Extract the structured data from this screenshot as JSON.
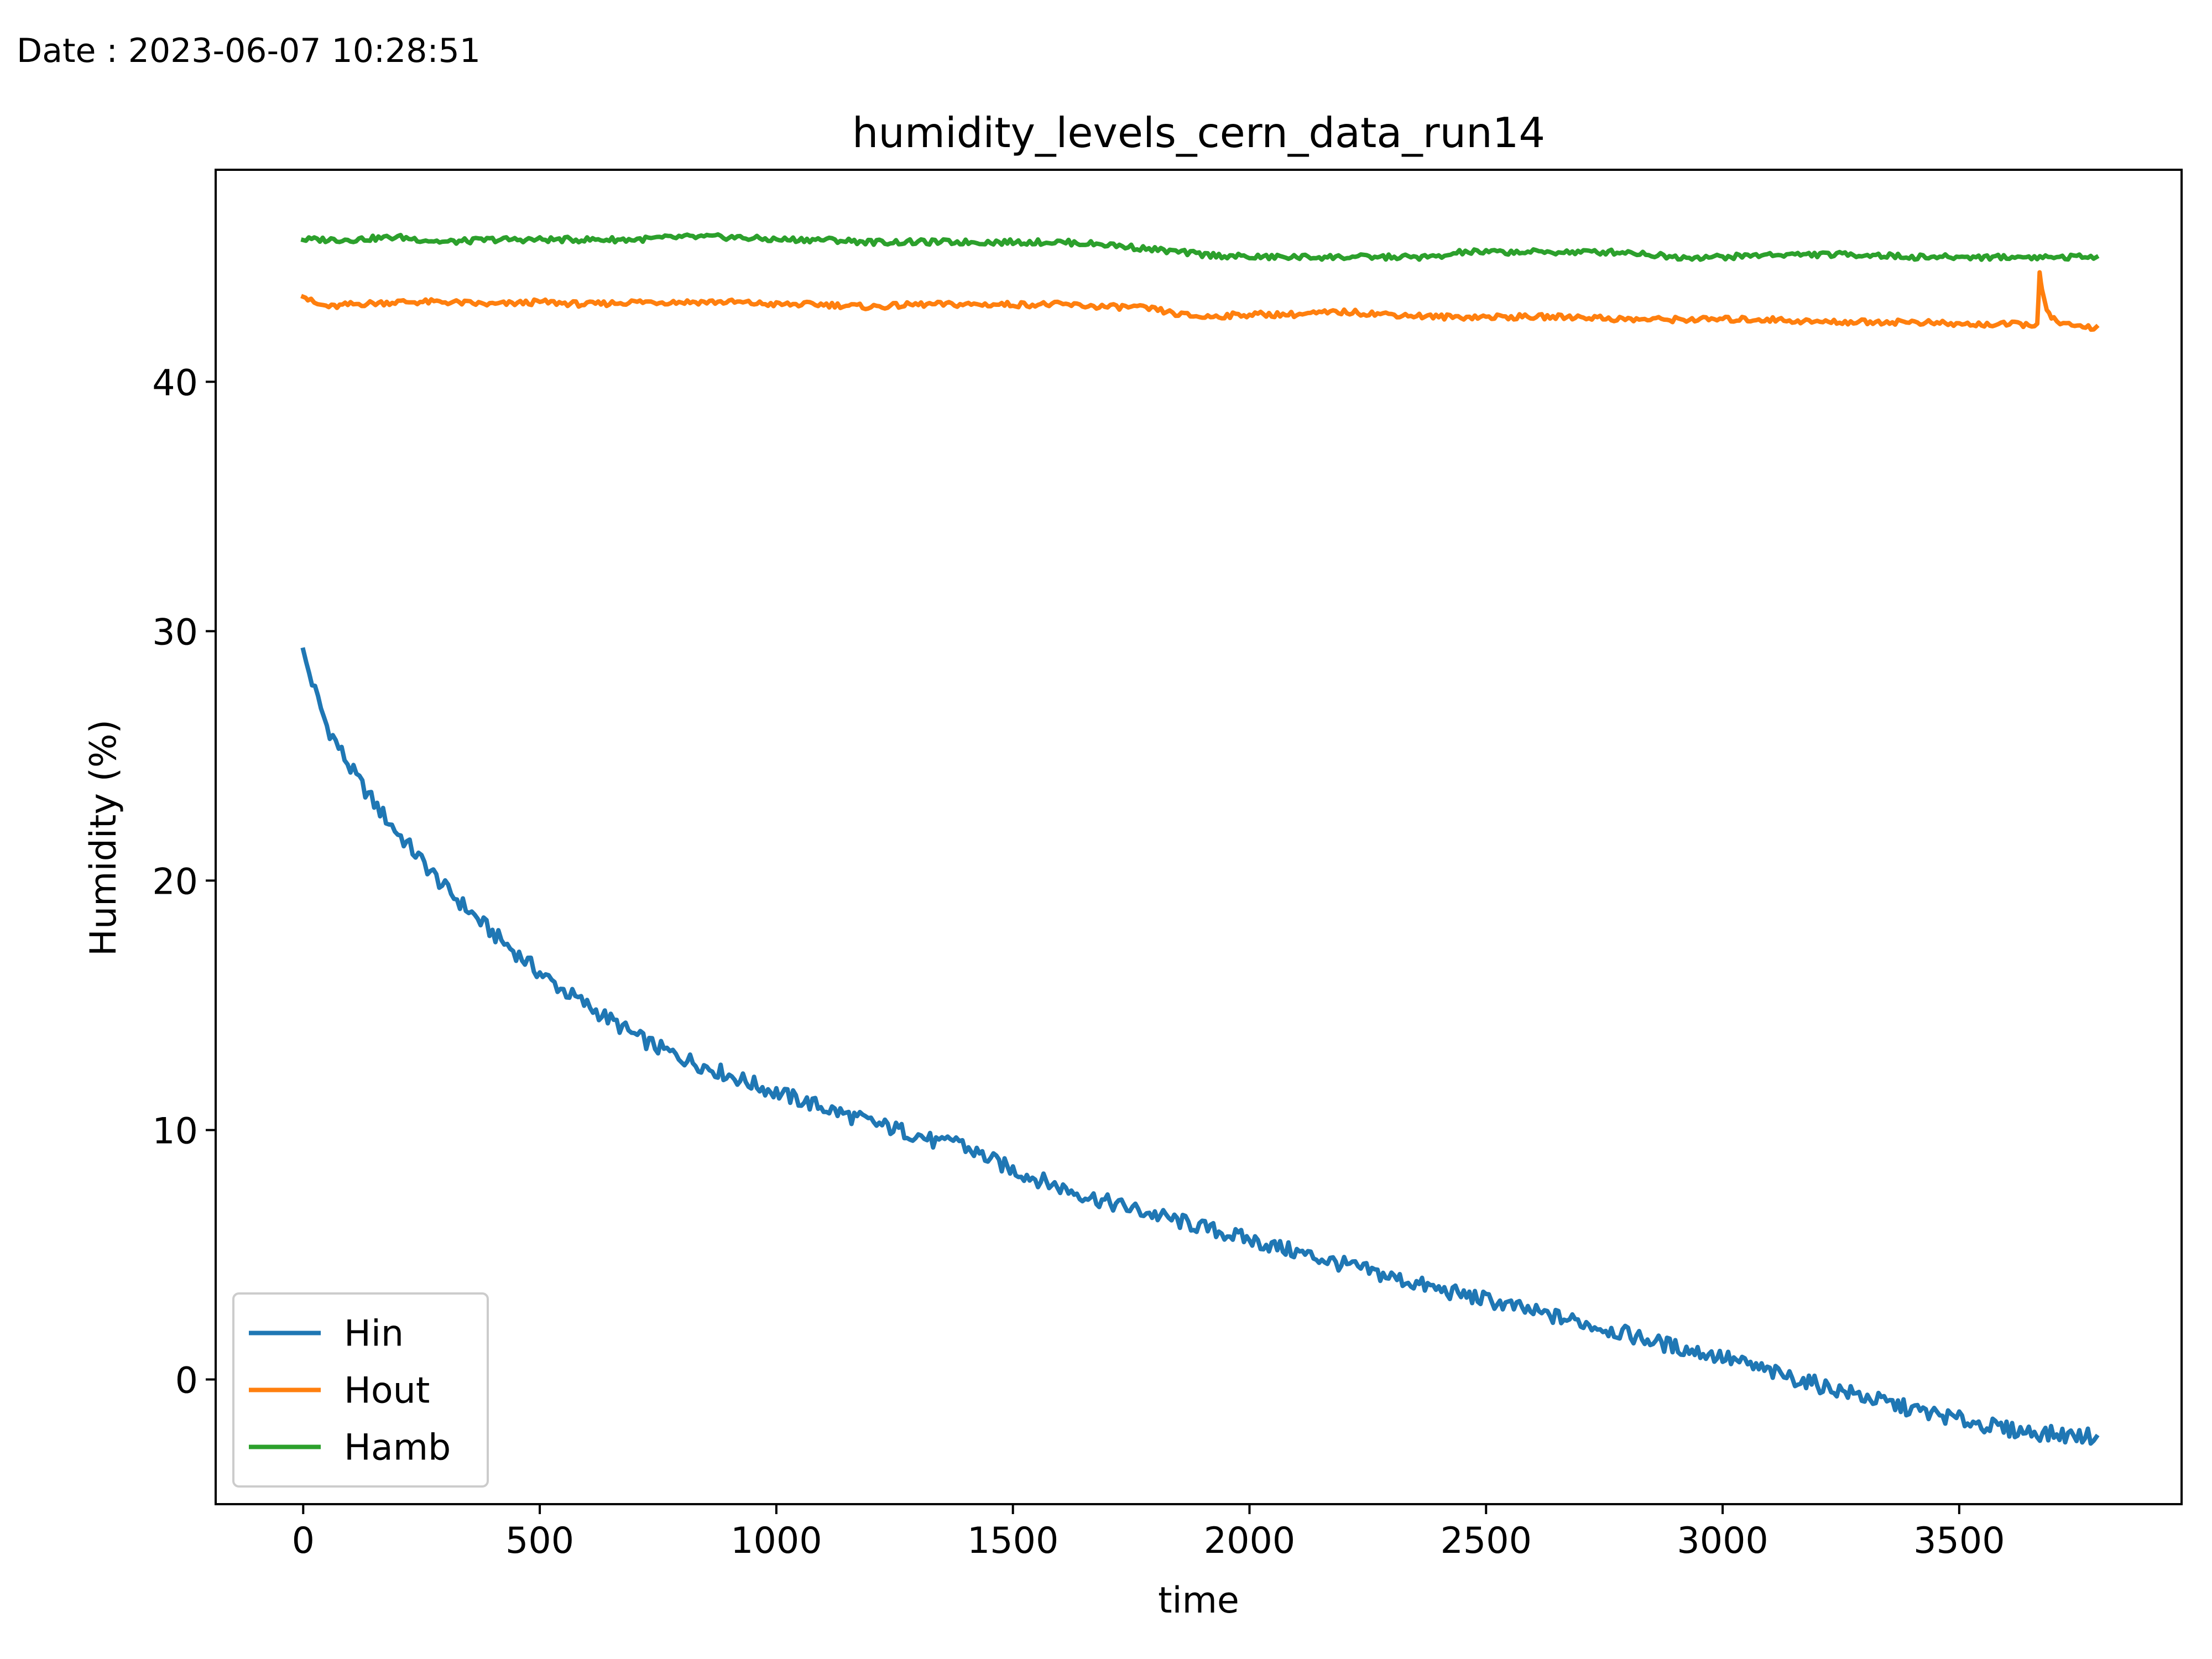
{
  "header": {
    "date_text": "Date : 2023-06-07 10:28:51"
  },
  "chart_data": {
    "type": "line",
    "title": "humidity_levels_cern_data_run14",
    "xlabel": "time",
    "ylabel": "Humidity (%)",
    "xlim": [
      -185,
      3970
    ],
    "ylim": [
      -5,
      48.5
    ],
    "xticks": [
      0,
      500,
      1000,
      1500,
      2000,
      2500,
      3000,
      3500
    ],
    "yticks": [
      0,
      10,
      20,
      30,
      40
    ],
    "grid": false,
    "legend": {
      "placement": "lower-left"
    },
    "series": [
      {
        "name": "Hin",
        "color": "#1f77b4",
        "x": [
          0,
          25,
          50,
          100,
          150,
          200,
          250,
          300,
          350,
          400,
          450,
          500,
          550,
          600,
          650,
          700,
          750,
          800,
          900,
          1000,
          1100,
          1200,
          1300,
          1350,
          1380,
          1400,
          1500,
          1600,
          1700,
          1800,
          1900,
          2000,
          2100,
          2200,
          2300,
          2400,
          2500,
          2600,
          2700,
          2800,
          2900,
          3000,
          3100,
          3200,
          3300,
          3400,
          3500,
          3600,
          3700,
          3790
        ],
        "y": [
          29.1,
          27.6,
          26.2,
          24.5,
          23.1,
          21.9,
          20.8,
          19.7,
          18.8,
          17.9,
          17.1,
          16.3,
          15.6,
          15.0,
          14.4,
          13.8,
          13.3,
          12.9,
          12.2,
          11.5,
          10.9,
          10.3,
          9.8,
          9.4,
          9.7,
          9.3,
          8.4,
          7.7,
          7.1,
          6.6,
          6.1,
          5.6,
          5.1,
          4.6,
          4.1,
          3.6,
          3.2,
          2.7,
          2.3,
          1.8,
          1.3,
          0.9,
          0.3,
          -0.2,
          -0.7,
          -1.2,
          -1.6,
          -2.0,
          -2.2,
          -2.3
        ]
      },
      {
        "name": "Hout",
        "color": "#ff7f0e",
        "x": [
          0,
          10,
          30,
          60,
          100,
          200,
          300,
          400,
          500,
          600,
          700,
          800,
          900,
          1000,
          1100,
          1200,
          1300,
          1400,
          1500,
          1600,
          1700,
          1750,
          1800,
          1850,
          1900,
          2000,
          2100,
          2200,
          2300,
          2400,
          2500,
          2600,
          2700,
          2800,
          2900,
          3000,
          3100,
          3200,
          3300,
          3400,
          3500,
          3600,
          3665,
          3670,
          3675,
          3685,
          3700,
          3720,
          3750,
          3790
        ],
        "y": [
          43.5,
          43.3,
          43.1,
          43.0,
          43.1,
          43.2,
          43.2,
          43.1,
          43.2,
          43.1,
          43.2,
          43.2,
          43.2,
          43.1,
          43.1,
          43.0,
          43.1,
          43.1,
          43.1,
          43.1,
          43.0,
          43.0,
          42.9,
          42.7,
          42.6,
          42.7,
          42.7,
          42.8,
          42.7,
          42.6,
          42.6,
          42.6,
          42.6,
          42.5,
          42.5,
          42.5,
          42.5,
          42.4,
          42.4,
          42.4,
          42.3,
          42.3,
          42.3,
          44.3,
          43.6,
          42.9,
          42.5,
          42.3,
          42.2,
          42.2
        ]
      },
      {
        "name": "Hamb",
        "color": "#2ca02c",
        "x": [
          0,
          100,
          200,
          300,
          400,
          500,
          600,
          700,
          800,
          900,
          1000,
          1100,
          1200,
          1300,
          1400,
          1500,
          1600,
          1700,
          1750,
          1800,
          1850,
          1900,
          2000,
          2100,
          2200,
          2300,
          2400,
          2450,
          2500,
          2600,
          2700,
          2800,
          2850,
          2900,
          3000,
          3100,
          3200,
          3300,
          3400,
          3500,
          3600,
          3700,
          3790
        ],
        "y": [
          45.7,
          45.7,
          45.8,
          45.6,
          45.7,
          45.7,
          45.7,
          45.7,
          45.8,
          45.8,
          45.7,
          45.7,
          45.6,
          45.6,
          45.6,
          45.6,
          45.6,
          45.5,
          45.4,
          45.3,
          45.2,
          45.1,
          45.0,
          45.0,
          45.0,
          45.0,
          45.0,
          45.2,
          45.2,
          45.2,
          45.2,
          45.2,
          45.1,
          45.0,
          45.0,
          45.1,
          45.1,
          45.1,
          45.0,
          45.0,
          45.0,
          45.0,
          45.0
        ]
      }
    ]
  }
}
